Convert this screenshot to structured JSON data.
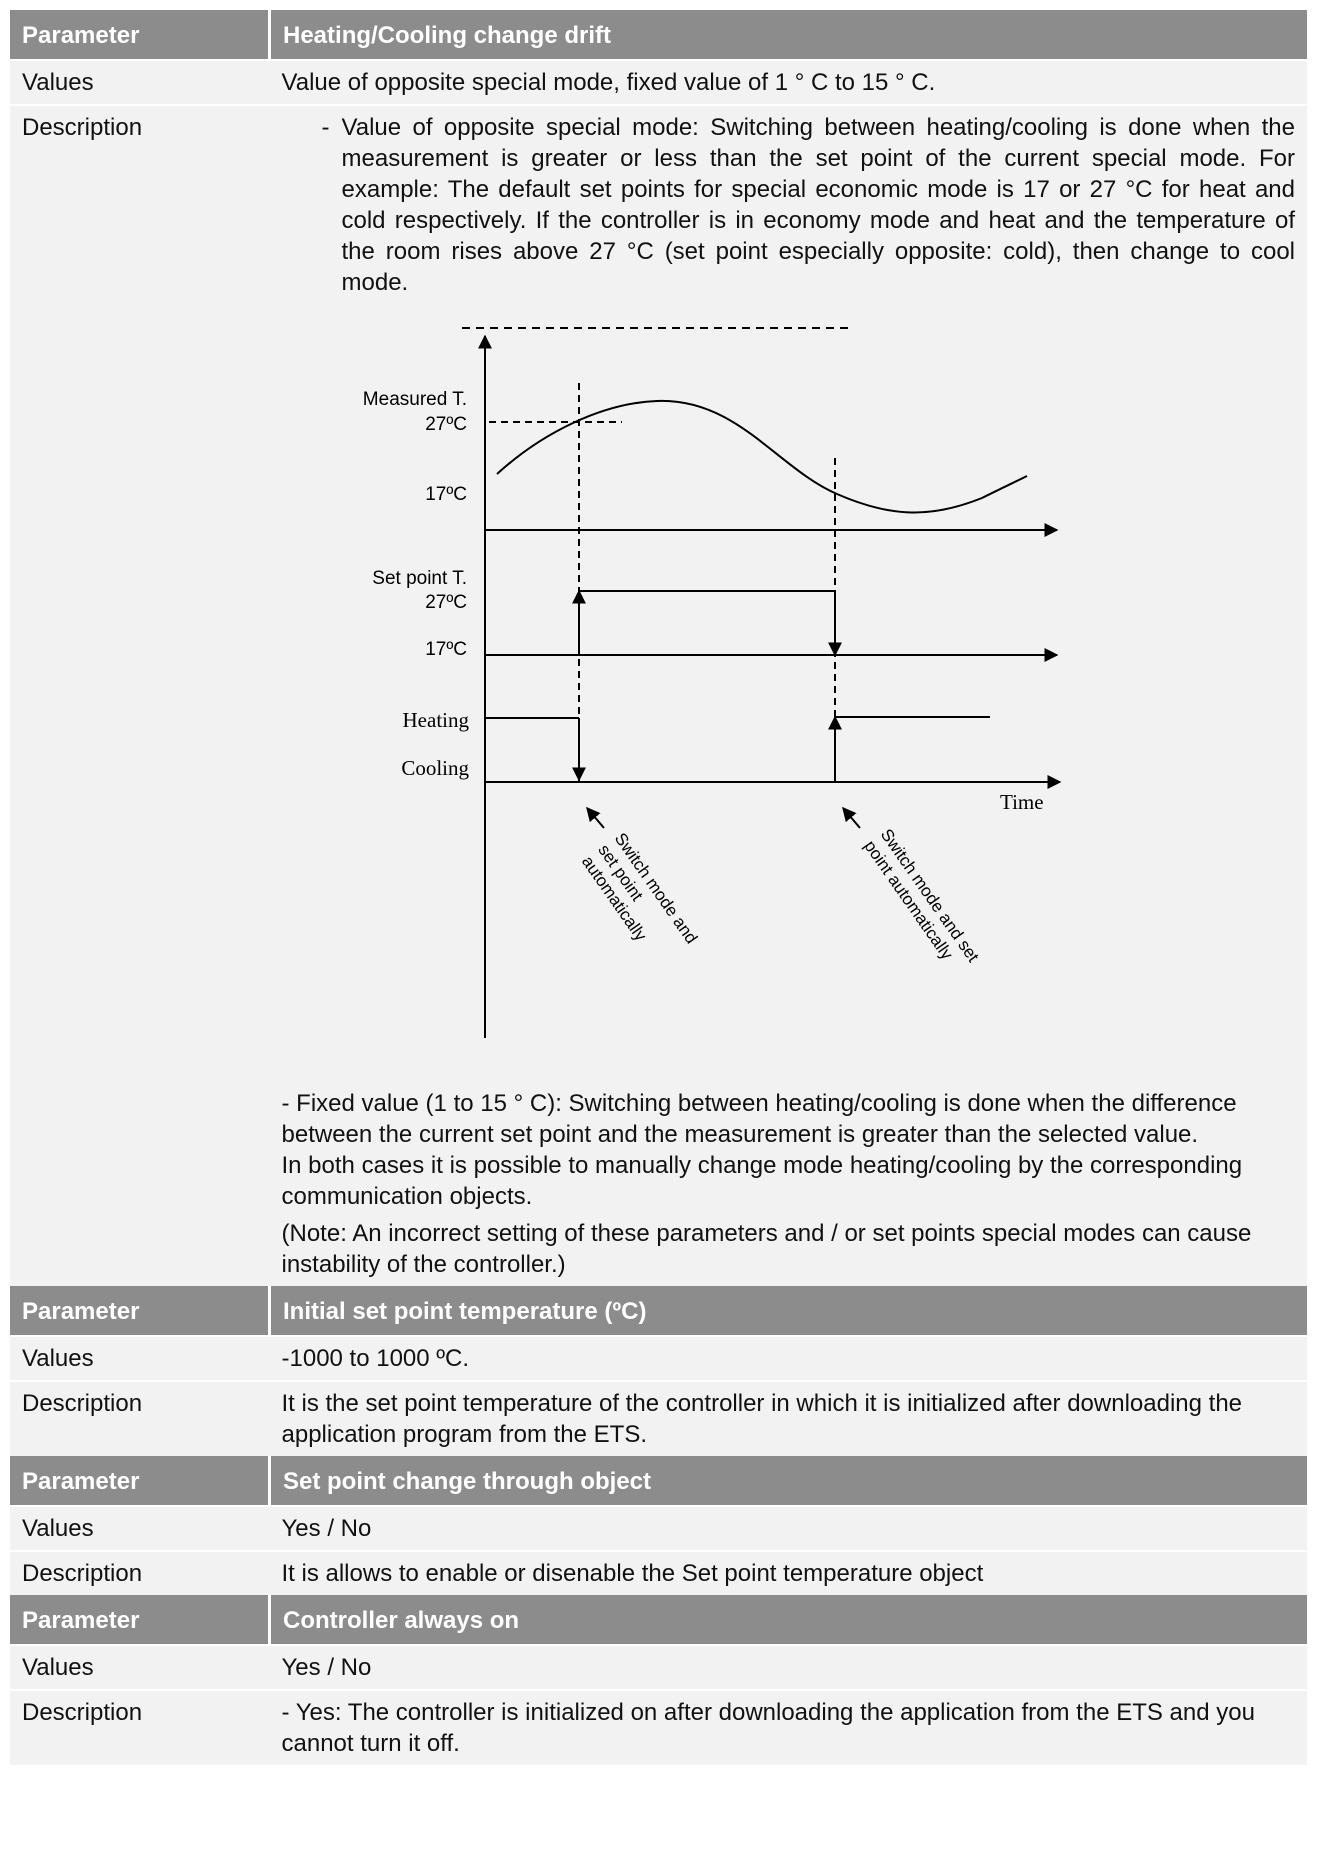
{
  "sections": [
    {
      "param_label": "Parameter",
      "param_value": "Heating/Cooling change drift",
      "values_label": "Values",
      "values_text": "Value of opposite special mode, fixed value of 1 ° C to 15 ° C.",
      "desc_label": "Description",
      "bullet_dash": "-",
      "bullet_text": "Value of opposite special mode: Switching between heating/cooling is done when the measurement is greater or less than the set point of the current special mode. For example: The default set points for special economic mode is 17 or 27 °C for heat and cold respectively. If the controller is in economy mode and heat and the temperature of the room rises above 27 °C (set point especially opposite: cold), then change to cool mode.",
      "para1": "- Fixed value (1 to 15 ° C): Switching between heating/cooling is done when the difference between the current set point and the measurement is greater than the selected value.",
      "para2": "In both cases it is possible to manually change mode heating/cooling by the corresponding communication objects.",
      "para3": "(Note: An incorrect setting of these parameters and / or set points special modes can cause instability of the controller.)"
    },
    {
      "param_label": "Parameter",
      "param_value": "Initial set point temperature (ºC)",
      "values_label": "Values",
      "values_text": "-1000 to 1000 ºC.",
      "desc_label": "Description",
      "desc_text": "It is the set point temperature of the controller in which it is initialized after downloading the application program from the ETS."
    },
    {
      "param_label": "Parameter",
      "param_value": "Set point change through object",
      "values_label": "Values",
      "values_text": "Yes / No",
      "desc_label": "Description",
      "desc_text": "It is allows to enable or disenable the Set point temperature object"
    },
    {
      "param_label": "Parameter",
      "param_value": "Controller always on",
      "values_label": "Values",
      "values_text": "Yes / No",
      "desc_label": "Description",
      "desc_text": "- Yes: The controller is initialized on after downloading the application from the ETS and you cannot turn it off."
    }
  ],
  "diagram": {
    "measured_label": "Measured T.",
    "measured_27": "27ºC",
    "measured_17": "17ºC",
    "setpoint_label": "Set point T.",
    "setpoint_27": "27ºC",
    "setpoint_17": "17ºC",
    "heating_label": "Heating",
    "cooling_label": "Cooling",
    "time_label": "Time",
    "switch_note_1": [
      "Switch mode and",
      "set point",
      "automatically"
    ],
    "switch_note_2": [
      "Switch mode and set",
      "point automatically"
    ]
  }
}
